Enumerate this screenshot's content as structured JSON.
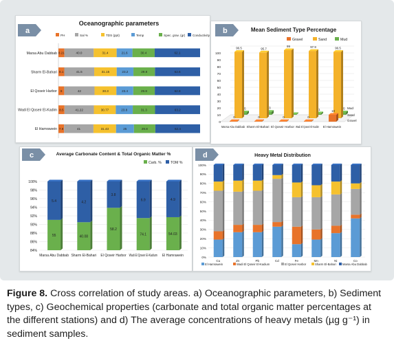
{
  "colors": {
    "blue": "#2e5fa6",
    "orange": "#e8732a",
    "gray": "#a6a6a6",
    "yellow": "#f5c12e",
    "light_blue": "#5b9bd5",
    "green": "#6ab04c",
    "gold": "#f4b22a",
    "letter_badge": "#7a8fa6"
  },
  "caption": {
    "label": "Figure 8.",
    "text": "Cross correlation of study areas. a) Oceanographic parameters, b) Sediment types, c) Geochemical properties (carbonate and total organic matter percentages at the different stations) and d) The average concentrations of heavy metals (µg g⁻¹) in sediment samples."
  },
  "chart_data": [
    {
      "panel": "a",
      "type": "bar",
      "orientation": "horizontal",
      "stacked": true,
      "title": "Oceanographic parameters",
      "categories": [
        "Marsa Abu Dabbab",
        "Sharm El-Bahari",
        "El Qoseir Harbor",
        "Wadi El Qoseir El-Kadim",
        "El Hamrawein"
      ],
      "series": [
        {
          "name": "PH",
          "color": "#e8732a",
          "values": [
            8.21,
            8.1,
            8,
            8.5,
            7.8
          ]
        },
        {
          "name": "Sal %",
          "color": "#a6a6a6",
          "values": [
            40.0,
            41.5,
            42,
            41.22,
            41
          ]
        },
        {
          "name": "TDS (ppt)",
          "color": "#f5c12e",
          "values": [
            31.4,
            31.15,
            30.3,
            30.77,
            31.43
          ]
        },
        {
          "name": "Temp",
          "color": "#5b9bd5",
          "values": [
            21.6,
            23.2,
            23.4,
            23.8,
            25
          ]
        },
        {
          "name": "Spec. grav. (gr)",
          "color": "#6ab04c",
          "values": [
            30.4,
            29.8,
            29.8,
            31.3,
            29.8
          ]
        },
        {
          "name": "Conductivity (ms/cm)",
          "color": "#2e5fa6",
          "values": [
            62.1,
            62.6,
            62.8,
            63.2,
            62.4
          ]
        }
      ],
      "labels": [
        [
          "8.21",
          "40.0",
          "31.4",
          "21.6",
          "30.4",
          "62.1"
        ],
        [
          "8.1",
          "41.5",
          "31.15",
          "23.2",
          "29.8",
          "62.6"
        ],
        [
          "8",
          "42",
          "30.3",
          "23.4",
          "29.8",
          "62.8"
        ],
        [
          "8.5",
          "41.22",
          "30.77",
          "23.8",
          "31.3",
          "63.2"
        ],
        [
          "7.8",
          "41",
          "31.43",
          "25",
          "29.8",
          "62.4"
        ]
      ]
    },
    {
      "panel": "b",
      "type": "bar",
      "style": "3d-clustered",
      "title": "Mean Sediment Type Percentage",
      "categories": [
        "Marsa Abu Dabbab",
        "Sharm El-Bahari",
        "El Qoseir Harbor",
        "Wadi El Qoseir El-Kadim",
        "El Hamrawein"
      ],
      "series": [
        {
          "name": "Gravel",
          "color": "#e8732a",
          "values": [
            0,
            0,
            0,
            0,
            10
          ],
          "labels": [
            "0",
            "0",
            "0",
            "0",
            "10"
          ]
        },
        {
          "name": "Sand",
          "color": "#f4b22a",
          "values": [
            96.5,
            95.7,
            99,
            97.9,
            96.5
          ],
          "labels": [
            "96.5",
            "95.7",
            "99",
            "97.9",
            "96.5"
          ]
        },
        {
          "name": "Mud",
          "color": "#6ab04c",
          "values": [
            3.5,
            4.3,
            1,
            2.1,
            3.5
          ],
          "labels": [
            "3.5",
            "4.3",
            "1",
            "2.1",
            "3.5"
          ]
        }
      ],
      "ylim": [
        0,
        100
      ],
      "yticks": [
        0,
        10,
        20,
        30,
        40,
        50,
        60,
        70,
        80,
        90,
        100
      ],
      "depth_labels": [
        "Mud",
        "Sand",
        "Gravel"
      ]
    },
    {
      "panel": "c",
      "type": "bar",
      "stacked": true,
      "normalized": true,
      "title": "Average Carbonate Content & Total Organic Matter %",
      "categories": [
        "Marsa Abu Dabbab",
        "Sharm El-Bahari",
        "El Qoseir Harbor",
        "Wadi El Qoseir El-Kadium",
        "El Hamrawein"
      ],
      "series": [
        {
          "name": "Carb. %",
          "color": "#6ab04c",
          "values": [
            55,
            40.08,
            58.2,
            74.1,
            54.03
          ],
          "labels": [
            "55",
            "40.08",
            "58.2",
            "74.1",
            "54.03"
          ]
        },
        {
          "name": "TOM %",
          "color": "#2e5fa6",
          "values": [
            5.4,
            4.2,
            3.8,
            6.9,
            4.9
          ],
          "labels": [
            "5.4",
            "4.2",
            "3.8",
            "6.9",
            "4.9"
          ]
        }
      ],
      "ylim_percent": [
        84,
        100
      ],
      "yticks": [
        "84%",
        "86%",
        "88%",
        "90%",
        "92%",
        "94%",
        "96%",
        "98%",
        "100%"
      ]
    },
    {
      "panel": "d",
      "type": "bar",
      "stacked": true,
      "normalized": true,
      "title": "Heavy Metal Distribution",
      "categories": [
        "Cu",
        "Zn",
        "Pb",
        "Cd",
        "Fe",
        "Mn",
        "Ni",
        "Co"
      ],
      "series": [
        {
          "name": "El Hamrawein",
          "color": "#5b9bd5",
          "values": [
            19,
            27,
            27,
            33,
            14,
            19,
            26,
            42
          ]
        },
        {
          "name": "Wadi El Qoseir El-Kadium",
          "color": "#e8732a",
          "values": [
            9,
            8,
            8,
            5,
            19,
            11,
            8,
            4
          ]
        },
        {
          "name": "El Qoseir Harbor",
          "color": "#a6a6a6",
          "values": [
            44,
            36,
            37,
            47,
            32,
            35,
            34,
            28
          ]
        },
        {
          "name": "Sharm El-Bahari",
          "color": "#f5c12e",
          "values": [
            10,
            12,
            11,
            4,
            16,
            13,
            14,
            6
          ]
        },
        {
          "name": "Marsa Abu Dabbab",
          "color": "#2e5fa6",
          "values": [
            18,
            17,
            17,
            11,
            19,
            22,
            18,
            20
          ]
        }
      ],
      "yticks": [
        "0%",
        "10%",
        "20%",
        "30%",
        "40%",
        "50%",
        "60%",
        "70%",
        "80%",
        "90%",
        "100%"
      ]
    }
  ]
}
